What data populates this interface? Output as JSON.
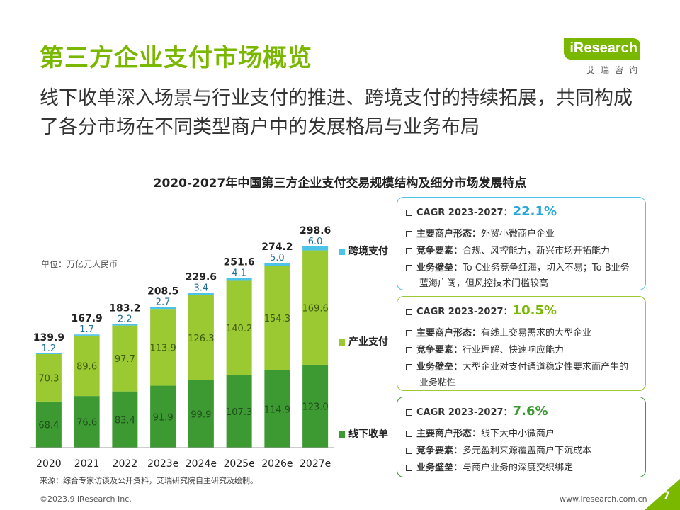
{
  "header": {
    "title": "第三方企业支付市场概览",
    "subtitle": "线下收单深入场景与行业支付的推进、跨境支付的持续拓展，共同构成了各分市场在不同类型商户中的发展格局与业务布局"
  },
  "logo": {
    "brand": "iResearch",
    "sub": "艾瑞咨询"
  },
  "chart_data": {
    "type": "bar",
    "stacked": true,
    "title": "2020-2027年中国第三方企业支付交易规模结构及细分市场发展特点",
    "unit": "单位：万亿元人民币",
    "categories": [
      "2020",
      "2021",
      "2022",
      "2023e",
      "2024e",
      "2025e",
      "2026e",
      "2027e"
    ],
    "series": [
      {
        "name": "线下收单",
        "color": "#3d9a33",
        "values": [
          68.4,
          76.6,
          83.4,
          91.9,
          99.9,
          107.3,
          114.9,
          123.0
        ]
      },
      {
        "name": "产业支付",
        "color": "#9ac932",
        "values": [
          70.3,
          89.6,
          97.7,
          113.9,
          126.3,
          140.2,
          154.3,
          169.6
        ]
      },
      {
        "name": "跨境支付",
        "color": "#4dc3e8",
        "values": [
          1.2,
          1.7,
          2.2,
          2.7,
          3.4,
          4.1,
          5.0,
          6.0
        ]
      }
    ],
    "totals": [
      139.9,
      167.9,
      183.2,
      208.5,
      229.6,
      251.6,
      274.2,
      298.6
    ],
    "ylim": [
      0,
      310
    ]
  },
  "legend": [
    "跨境支付",
    "产业支付",
    "线下收单"
  ],
  "boxes": [
    {
      "border": "#4dc3e8",
      "cagr_label": "CAGR 2023-2027：",
      "cagr_value": "22.1%",
      "cagr_color": "#22a6db",
      "rows": [
        {
          "label": "主要商户形态：",
          "text": "外贸小微商户企业"
        },
        {
          "label": "竞争要素：",
          "text": "合规、风控能力，新兴市场开拓能力"
        },
        {
          "label": "业务壁垒：",
          "text": "To C业务竞争红海，切入不易；To B业务"
        },
        {
          "label": "",
          "text": "蓝海广阔，但风控技术门槛较高"
        }
      ]
    },
    {
      "border": "#9ac932",
      "cagr_label": "CAGR 2023-2027：",
      "cagr_value": "10.5%",
      "cagr_color": "#7ab800",
      "rows": [
        {
          "label": "主要商户形态：",
          "text": "有线上交易需求的大型企业"
        },
        {
          "label": "竞争要素：",
          "text": "行业理解、快速响应能力"
        },
        {
          "label": "业务壁垒：",
          "text": "大型企业对支付通道稳定性要求而产生的"
        },
        {
          "label": "",
          "text": "业务粘性"
        }
      ]
    },
    {
      "border": "#3d9a33",
      "cagr_label": "CAGR 2023-2027：",
      "cagr_value": "7.6%",
      "cagr_color": "#3d9a33",
      "rows": [
        {
          "label": "主要商户形态：",
          "text": "线下大中小微商户"
        },
        {
          "label": "竞争要素：",
          "text": "多元盈利来源覆盖商户下沉成本"
        },
        {
          "label": "业务壁垒：",
          "text": "与商户业务的深度交织绑定"
        }
      ]
    }
  ],
  "source": "来源：综合专家访谈及公开资料，艾瑞研究院自主研究及绘制。",
  "footer": {
    "left": "©2023.9 iResearch Inc.",
    "right": "www.iresearch.com.cn",
    "page": "7"
  }
}
